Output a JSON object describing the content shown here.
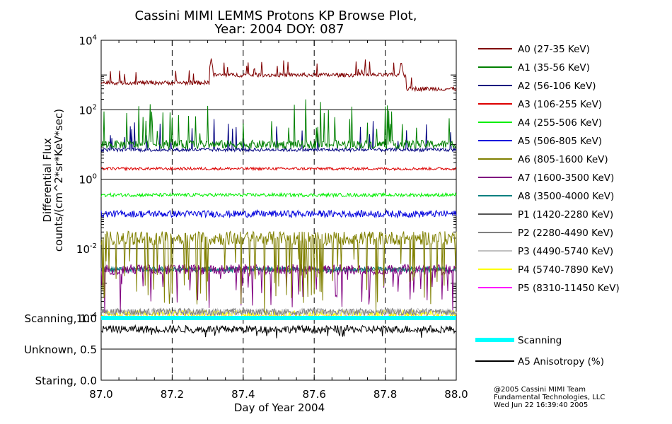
{
  "chart_data": {
    "type": "line",
    "title_line1": "Cassini MIMI LEMMS Protons KP Browse Plot,",
    "title_line2": "Year: 2004 DOY: 087",
    "xlabel": "Day of Year 2004",
    "ylabel_line1": "Differential Flux",
    "ylabel_line2": "counts/(cm^2*sr*KeV*sec)",
    "x_range": [
      87.0,
      88.0
    ],
    "x_ticks": [
      87.0,
      87.2,
      87.4,
      87.6,
      87.8,
      88.0
    ],
    "x_tick_labels": [
      "87.0",
      "87.2",
      "87.4",
      "87.6",
      "87.8",
      "88.0"
    ],
    "y_scale": "log",
    "y_range": [
      0.0001,
      10000
    ],
    "y_ticks": [
      {
        "base": "10",
        "exp": "4",
        "value": 10000
      },
      {
        "base": "10",
        "exp": "2",
        "value": 100
      },
      {
        "base": "10",
        "exp": "0",
        "value": 1
      },
      {
        "base": "10",
        "exp": "-2",
        "value": 0.01
      },
      {
        "base": "10",
        "exp": "-4",
        "value": 0.0001
      }
    ],
    "series": [
      {
        "name": "A0 (27-35 KeV)",
        "color": "#800000",
        "typical": 700,
        "jitter": 0.06,
        "spike_rate": 0.04,
        "spike_max": 0.4,
        "segments": [
          {
            "from": 87.0,
            "to": 87.31,
            "level": 600
          },
          {
            "from": 87.31,
            "to": 87.86,
            "level": 1000
          },
          {
            "from": 87.86,
            "to": 88.0,
            "level": 400
          }
        ],
        "peaks": [
          {
            "x": 87.31,
            "value": 3000
          },
          {
            "x": 87.845,
            "value": 2500
          }
        ]
      },
      {
        "name": "A1 (35-56 KeV)",
        "color": "#008000",
        "typical": 10,
        "jitter": 0.12,
        "spike_rate": 0.08,
        "spike_max": 1.2
      },
      {
        "name": "A2 (56-106 KeV)",
        "color": "#000080",
        "typical": 7,
        "jitter": 0.05,
        "spike_rate": 0.05,
        "spike_max": 0.9
      },
      {
        "name": "A3 (106-255 KeV)",
        "color": "#dd0000",
        "typical": 2,
        "jitter": 0.04,
        "spike_rate": 0.0,
        "spike_max": 0.0
      },
      {
        "name": "A4 (255-506 KeV)",
        "color": "#00ee00",
        "typical": 0.35,
        "jitter": 0.05,
        "spike_rate": 0.0,
        "spike_max": 0.0
      },
      {
        "name": "A5 (506-805 KeV)",
        "color": "#0000dd",
        "typical": 0.1,
        "jitter": 0.1,
        "spike_rate": 0.0,
        "spike_max": 0.0
      },
      {
        "name": "A6 (805-1600 KeV)",
        "color": "#808000",
        "typical": 0.02,
        "jitter": 0.2,
        "spike_rate": 0.15,
        "spike_max": -2.0
      },
      {
        "name": "A7 (1600-3500 KeV)",
        "color": "#800080",
        "typical": 0.0025,
        "jitter": 0.15,
        "spike_rate": 0.12,
        "spike_max": -1.2
      },
      {
        "name": "A8 (3500-4000 KeV)",
        "color": "#008080",
        "typical": 0.0025,
        "jitter": 0.08,
        "spike_rate": 0.0,
        "spike_max": 0.0
      },
      {
        "name": "P1 (1420-2280 KeV)",
        "color": "#555555",
        "typical": 0.0025,
        "jitter": 0.06,
        "spike_rate": 0.0,
        "spike_max": 0.0
      },
      {
        "name": "P2 (2280-4490 KeV)",
        "color": "#808080",
        "typical": 0.00015,
        "jitter": 0.1,
        "spike_rate": 0.0,
        "spike_max": 0.0
      },
      {
        "name": "P3 (4490-5740 KeV)",
        "color": "#c0c0c0",
        "typical": 0.00015,
        "jitter": 0.1,
        "spike_rate": 0.0,
        "spike_max": 0.0
      },
      {
        "name": "P4 (5740-7890 KeV)",
        "color": "#ffff00",
        "typical": 0.00013,
        "jitter": 0.12,
        "spike_rate": 0.0,
        "spike_max": 0.0
      },
      {
        "name": "P5 (8310-11450 KeV)",
        "color": "#ff00ff",
        "typical": 0.00011,
        "jitter": 0.02,
        "spike_rate": 0.0,
        "spike_max": 0.0
      }
    ],
    "lower_panel": {
      "y_labels": [
        {
          "text": "Scanning, 1.0",
          "value": 1.0
        },
        {
          "text": "Unknown, 0.5",
          "value": 0.5
        },
        {
          "text": "Staring, 0.0",
          "value": 0.0
        }
      ],
      "y_range": [
        0.0,
        1.0
      ],
      "series": [
        {
          "name": "Scanning",
          "color": "#00ffff",
          "value": 1.0
        },
        {
          "name": "A5 Anisotropy (%)",
          "color": "#000000",
          "mean": 0.82,
          "noise": 0.06
        }
      ]
    },
    "gridlines": true,
    "legend_position": "right",
    "footer_lines": [
      "@2005 Cassini MIMI Team",
      "Fundamental Technologies, LLC",
      "Wed Jun 22 16:39:40 2005"
    ]
  }
}
